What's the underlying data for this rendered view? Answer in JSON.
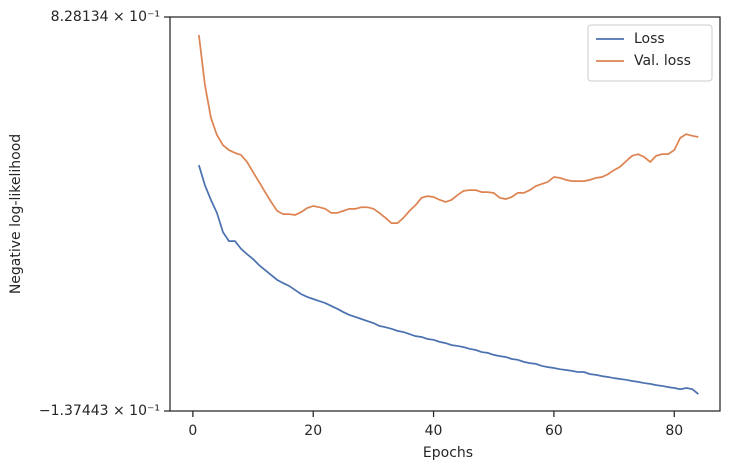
{
  "chart_data": {
    "type": "line",
    "xlabel": "Epochs",
    "ylabel": "Negative log-likelihood",
    "x": [
      1,
      2,
      3,
      4,
      5,
      6,
      7,
      8,
      9,
      10,
      11,
      12,
      13,
      14,
      15,
      16,
      17,
      18,
      19,
      20,
      21,
      22,
      23,
      24,
      25,
      26,
      27,
      28,
      29,
      30,
      31,
      32,
      33,
      34,
      35,
      36,
      37,
      38,
      39,
      40,
      41,
      42,
      43,
      44,
      45,
      46,
      47,
      48,
      49,
      50,
      51,
      52,
      53,
      54,
      55,
      56,
      57,
      58,
      59,
      60,
      61,
      62,
      63,
      64,
      65,
      66,
      67,
      68,
      69,
      70,
      71,
      72,
      73,
      74,
      75,
      76,
      77,
      78,
      79,
      80,
      81,
      82,
      83,
      84
    ],
    "series": [
      {
        "name": "Loss",
        "color": "#4c72b0",
        "values": [
          0.465,
          0.416,
          0.38,
          0.348,
          0.301,
          0.279,
          0.279,
          0.26,
          0.247,
          0.235,
          0.22,
          0.208,
          0.196,
          0.184,
          0.176,
          0.169,
          0.159,
          0.149,
          0.142,
          0.137,
          0.132,
          0.127,
          0.12,
          0.113,
          0.105,
          0.098,
          0.093,
          0.088,
          0.083,
          0.078,
          0.071,
          0.068,
          0.064,
          0.059,
          0.056,
          0.051,
          0.046,
          0.044,
          0.039,
          0.037,
          0.032,
          0.029,
          0.024,
          0.022,
          0.019,
          0.015,
          0.012,
          0.007,
          0.005,
          0.0,
          -0.003,
          -0.005,
          -0.01,
          -0.012,
          -0.017,
          -0.02,
          -0.022,
          -0.027,
          -0.03,
          -0.032,
          -0.035,
          -0.037,
          -0.039,
          -0.042,
          -0.042,
          -0.047,
          -0.049,
          -0.052,
          -0.054,
          -0.057,
          -0.059,
          -0.061,
          -0.064,
          -0.066,
          -0.069,
          -0.071,
          -0.074,
          -0.076,
          -0.079,
          -0.081,
          -0.084,
          -0.081,
          -0.084,
          -0.096
        ]
      },
      {
        "name": "Val. loss",
        "color": "#dd8452",
        "values": [
          0.784,
          0.662,
          0.581,
          0.539,
          0.514,
          0.502,
          0.495,
          0.49,
          0.473,
          0.448,
          0.424,
          0.399,
          0.375,
          0.353,
          0.345,
          0.345,
          0.343,
          0.35,
          0.36,
          0.365,
          0.362,
          0.358,
          0.348,
          0.348,
          0.353,
          0.358,
          0.358,
          0.362,
          0.362,
          0.358,
          0.348,
          0.336,
          0.323,
          0.323,
          0.336,
          0.353,
          0.367,
          0.385,
          0.389,
          0.387,
          0.38,
          0.375,
          0.38,
          0.392,
          0.402,
          0.404,
          0.404,
          0.399,
          0.399,
          0.397,
          0.385,
          0.382,
          0.387,
          0.397,
          0.397,
          0.404,
          0.414,
          0.419,
          0.424,
          0.436,
          0.434,
          0.429,
          0.426,
          0.426,
          0.426,
          0.429,
          0.434,
          0.436,
          0.443,
          0.453,
          0.461,
          0.475,
          0.488,
          0.492,
          0.485,
          0.473,
          0.488,
          0.492,
          0.492,
          0.502,
          0.532,
          0.541,
          0.537,
          0.534
        ]
      }
    ],
    "xlim": [
      -3.8,
      87.6
    ],
    "xticks": [
      0,
      20,
      40,
      60,
      80
    ],
    "ylim": [
      -0.137443,
      0.828134
    ],
    "yticks": [
      {
        "value": -0.137443,
        "label": "−1.37443 × 10⁻¹"
      },
      {
        "value": 0.828134,
        "label": "8.28134 × 10⁻¹"
      }
    ],
    "legend": "upper right",
    "grid": false
  }
}
